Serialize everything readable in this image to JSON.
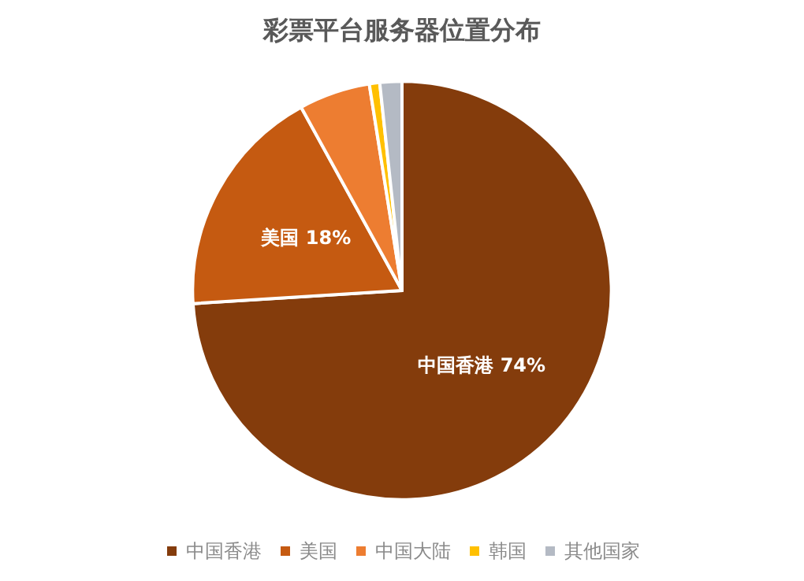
{
  "chart_data": {
    "type": "pie",
    "title": "彩票平台服务器位置分布",
    "categories": [
      "中国香港",
      "美国",
      "中国大陆",
      "韩国",
      "其他国家"
    ],
    "values": [
      74,
      18,
      5.5,
      0.8,
      1.7
    ],
    "value_labels": [
      "74%",
      "18%",
      null,
      null,
      null
    ],
    "colors": [
      "#843c0c",
      "#c55a11",
      "#ed7d31",
      "#ffc000",
      "#b4bac4"
    ],
    "legend": "bottom"
  }
}
